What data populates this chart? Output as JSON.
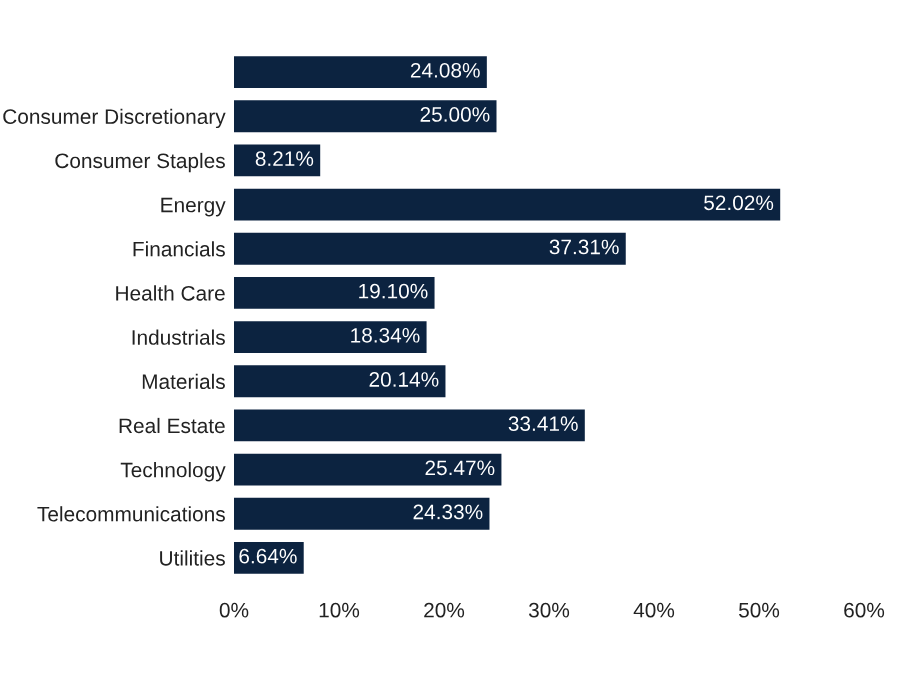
{
  "chart_data": {
    "type": "bar",
    "orientation": "horizontal",
    "categories": [
      null,
      "Consumer Discretionary",
      "Consumer Staples",
      "Energy",
      "Financials",
      "Health Care",
      "Industrials",
      "Materials",
      "Real Estate",
      "Technology",
      "Telecommunications",
      "Utilities"
    ],
    "values": [
      24.08,
      25.0,
      8.21,
      52.02,
      37.31,
      19.1,
      18.34,
      20.14,
      33.41,
      25.47,
      24.33,
      6.64
    ],
    "value_labels": [
      "24.08%",
      "25.00%",
      "8.21%",
      "52.02%",
      "37.31%",
      "19.10%",
      "18.34%",
      "20.14%",
      "33.41%",
      "25.47%",
      "24.33%",
      "6.64%"
    ],
    "color": "#0c2340",
    "xlim": [
      0,
      60
    ],
    "xticks": [
      {
        "value": 0,
        "label": "0%"
      },
      {
        "value": 10,
        "label": "10%"
      },
      {
        "value": 20,
        "label": "20%"
      },
      {
        "value": 30,
        "label": "30%"
      },
      {
        "value": 40,
        "label": "40%"
      },
      {
        "value": 50,
        "label": "50%"
      },
      {
        "value": 60,
        "label": "60%"
      }
    ],
    "grid": false
  }
}
